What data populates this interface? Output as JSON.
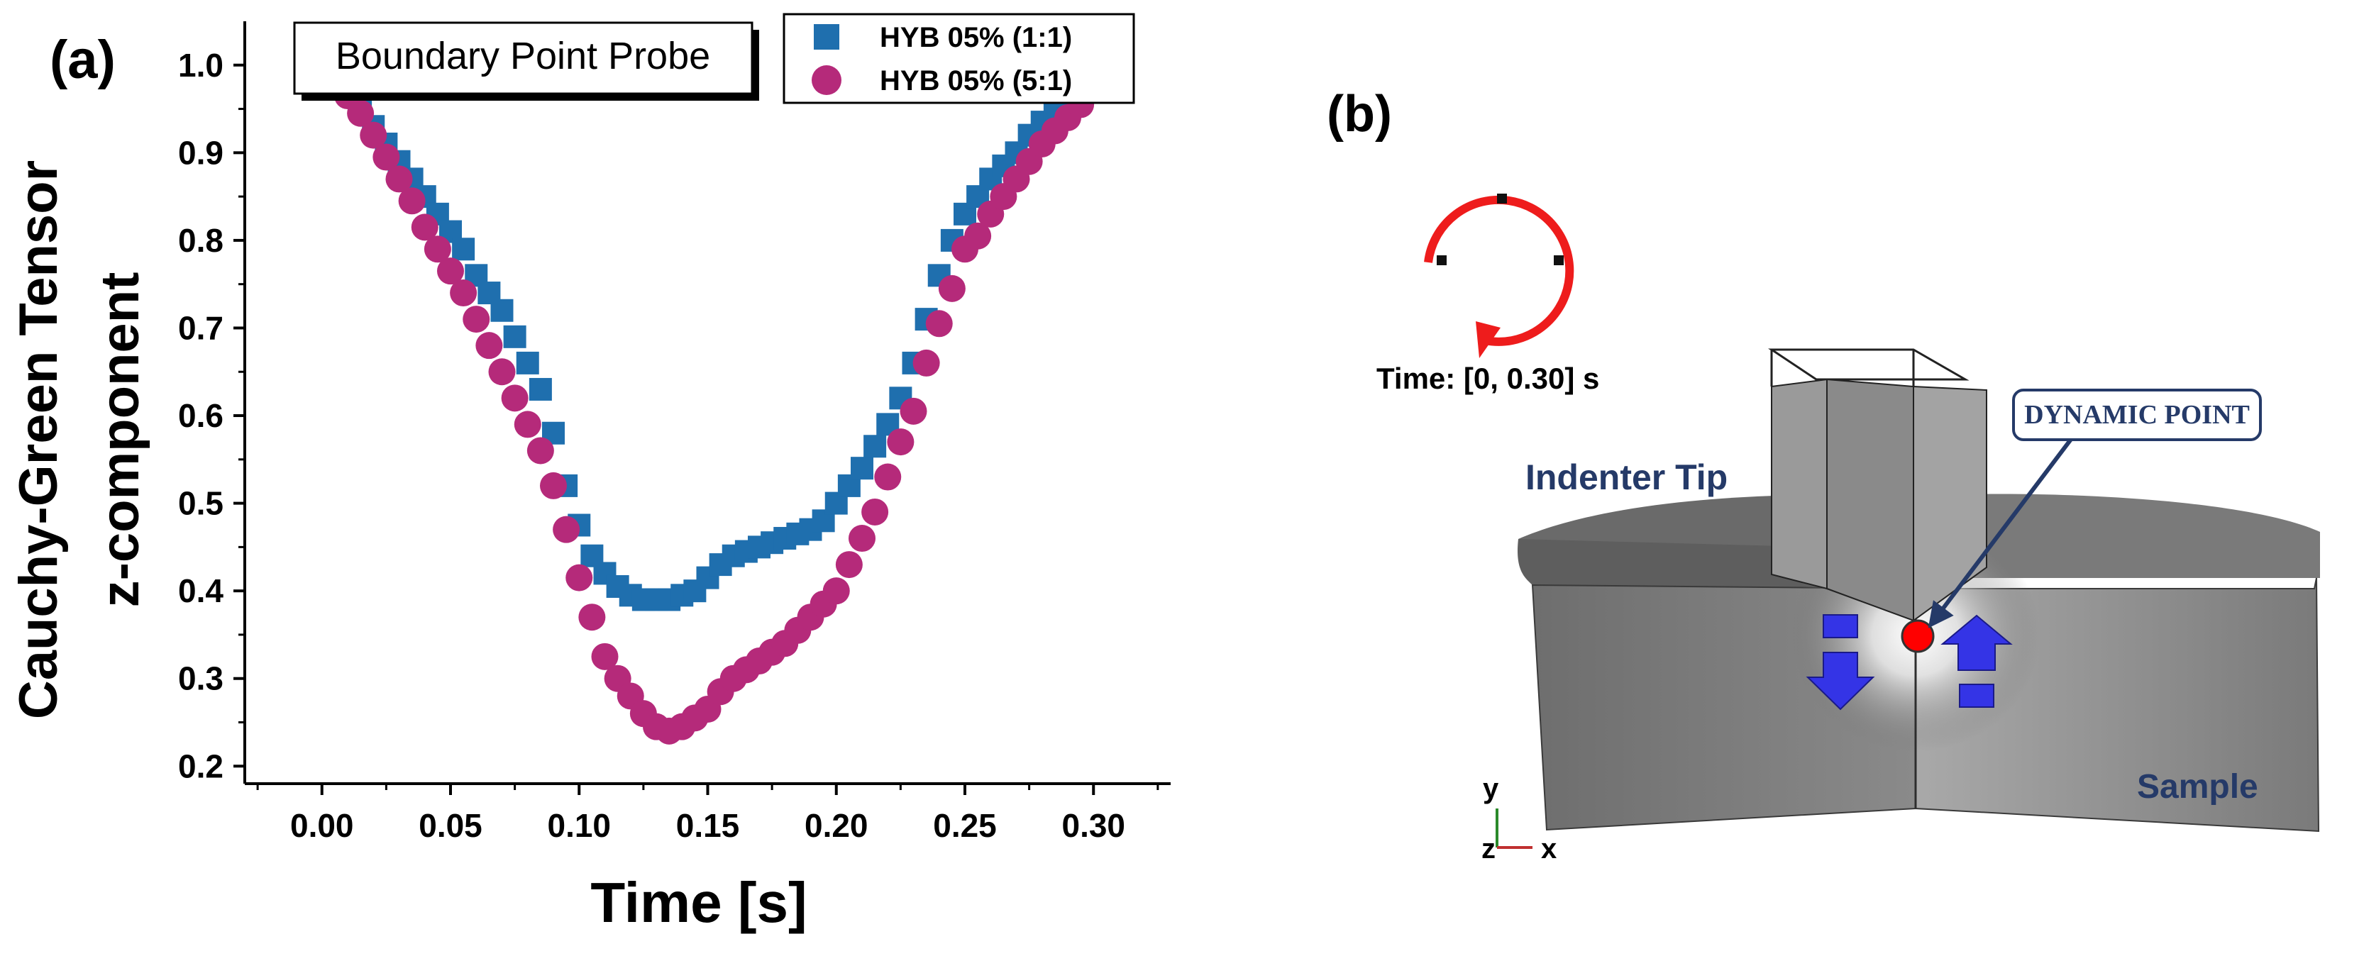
{
  "panel_a_label": "(a)",
  "panel_b_label": "(b)",
  "colors": {
    "series1": "#1f6fae",
    "series2": "#b52a7a",
    "dynamic_point": "#ff0000",
    "arrow_blue": "#3434e6",
    "timer_red": "#ee1c1c",
    "label_navy": "#253a68"
  },
  "chart_data": {
    "type": "scatter",
    "title": "Boundary Point Probe",
    "xlabel": "Time [s]",
    "ylabel_line1": "Cauchy-Green Tensor",
    "ylabel_line2": "z-component",
    "xlim": [
      -0.03,
      0.33
    ],
    "ylim": [
      0.18,
      1.05
    ],
    "xticks": [
      "0.00",
      "0.05",
      "0.10",
      "0.15",
      "0.20",
      "0.25",
      "0.30"
    ],
    "yticks": [
      "0.2",
      "0.3",
      "0.4",
      "0.5",
      "0.6",
      "0.7",
      "0.8",
      "0.9",
      "1.0"
    ],
    "legend_position": "top-right",
    "series": [
      {
        "name": "HYB 05% (1:1)",
        "marker": "square",
        "points": [
          [
            0.0,
            1.0
          ],
          [
            0.005,
            0.99
          ],
          [
            0.01,
            0.97
          ],
          [
            0.015,
            0.95
          ],
          [
            0.02,
            0.93
          ],
          [
            0.025,
            0.91
          ],
          [
            0.03,
            0.89
          ],
          [
            0.035,
            0.87
          ],
          [
            0.04,
            0.85
          ],
          [
            0.045,
            0.83
          ],
          [
            0.05,
            0.81
          ],
          [
            0.055,
            0.79
          ],
          [
            0.06,
            0.76
          ],
          [
            0.065,
            0.74
          ],
          [
            0.07,
            0.72
          ],
          [
            0.075,
            0.69
          ],
          [
            0.08,
            0.66
          ],
          [
            0.085,
            0.63
          ],
          [
            0.09,
            0.58
          ],
          [
            0.095,
            0.52
          ],
          [
            0.1,
            0.475
          ],
          [
            0.105,
            0.44
          ],
          [
            0.11,
            0.42
          ],
          [
            0.115,
            0.405
          ],
          [
            0.12,
            0.395
          ],
          [
            0.125,
            0.39
          ],
          [
            0.13,
            0.39
          ],
          [
            0.135,
            0.39
          ],
          [
            0.14,
            0.395
          ],
          [
            0.145,
            0.4
          ],
          [
            0.15,
            0.415
          ],
          [
            0.155,
            0.43
          ],
          [
            0.16,
            0.44
          ],
          [
            0.165,
            0.445
          ],
          [
            0.17,
            0.45
          ],
          [
            0.175,
            0.455
          ],
          [
            0.18,
            0.46
          ],
          [
            0.185,
            0.465
          ],
          [
            0.19,
            0.47
          ],
          [
            0.195,
            0.48
          ],
          [
            0.2,
            0.5
          ],
          [
            0.205,
            0.52
          ],
          [
            0.21,
            0.54
          ],
          [
            0.215,
            0.565
          ],
          [
            0.22,
            0.59
          ],
          [
            0.225,
            0.62
          ],
          [
            0.23,
            0.66
          ],
          [
            0.235,
            0.71
          ],
          [
            0.24,
            0.76
          ],
          [
            0.245,
            0.8
          ],
          [
            0.25,
            0.83
          ],
          [
            0.255,
            0.85
          ],
          [
            0.26,
            0.87
          ],
          [
            0.265,
            0.885
          ],
          [
            0.27,
            0.9
          ],
          [
            0.275,
            0.92
          ],
          [
            0.28,
            0.935
          ],
          [
            0.285,
            0.95
          ],
          [
            0.29,
            0.965
          ],
          [
            0.295,
            0.98
          ],
          [
            0.3,
            0.99
          ]
        ]
      },
      {
        "name": "HYB 05% (5:1)",
        "marker": "circle",
        "points": [
          [
            0.0,
            1.0
          ],
          [
            0.005,
            0.985
          ],
          [
            0.01,
            0.965
          ],
          [
            0.015,
            0.945
          ],
          [
            0.02,
            0.92
          ],
          [
            0.025,
            0.895
          ],
          [
            0.03,
            0.87
          ],
          [
            0.035,
            0.845
          ],
          [
            0.04,
            0.815
          ],
          [
            0.045,
            0.79
          ],
          [
            0.05,
            0.765
          ],
          [
            0.055,
            0.74
          ],
          [
            0.06,
            0.71
          ],
          [
            0.065,
            0.68
          ],
          [
            0.07,
            0.65
          ],
          [
            0.075,
            0.62
          ],
          [
            0.08,
            0.59
          ],
          [
            0.085,
            0.56
          ],
          [
            0.09,
            0.52
          ],
          [
            0.095,
            0.47
          ],
          [
            0.1,
            0.415
          ],
          [
            0.105,
            0.37
          ],
          [
            0.11,
            0.325
          ],
          [
            0.115,
            0.3
          ],
          [
            0.12,
            0.28
          ],
          [
            0.125,
            0.26
          ],
          [
            0.13,
            0.245
          ],
          [
            0.135,
            0.24
          ],
          [
            0.14,
            0.245
          ],
          [
            0.145,
            0.255
          ],
          [
            0.15,
            0.265
          ],
          [
            0.155,
            0.285
          ],
          [
            0.16,
            0.3
          ],
          [
            0.165,
            0.31
          ],
          [
            0.17,
            0.32
          ],
          [
            0.175,
            0.33
          ],
          [
            0.18,
            0.34
          ],
          [
            0.185,
            0.355
          ],
          [
            0.19,
            0.37
          ],
          [
            0.195,
            0.385
          ],
          [
            0.2,
            0.4
          ],
          [
            0.205,
            0.43
          ],
          [
            0.21,
            0.46
          ],
          [
            0.215,
            0.49
          ],
          [
            0.22,
            0.53
          ],
          [
            0.225,
            0.57
          ],
          [
            0.23,
            0.605
          ],
          [
            0.235,
            0.66
          ],
          [
            0.24,
            0.705
          ],
          [
            0.245,
            0.745
          ],
          [
            0.25,
            0.79
          ],
          [
            0.255,
            0.805
          ],
          [
            0.26,
            0.83
          ],
          [
            0.265,
            0.85
          ],
          [
            0.27,
            0.87
          ],
          [
            0.275,
            0.89
          ],
          [
            0.28,
            0.91
          ],
          [
            0.285,
            0.925
          ],
          [
            0.29,
            0.94
          ],
          [
            0.295,
            0.955
          ],
          [
            0.3,
            0.975
          ]
        ]
      }
    ]
  },
  "schematic": {
    "time_label": "Time: [0, 0.30] s",
    "dynamic_point_label": "DYNAMIC POINT",
    "indenter_label": "Indenter Tip",
    "sample_label": "Sample",
    "axis_y": "y",
    "axis_z": "z",
    "axis_x": "x"
  }
}
